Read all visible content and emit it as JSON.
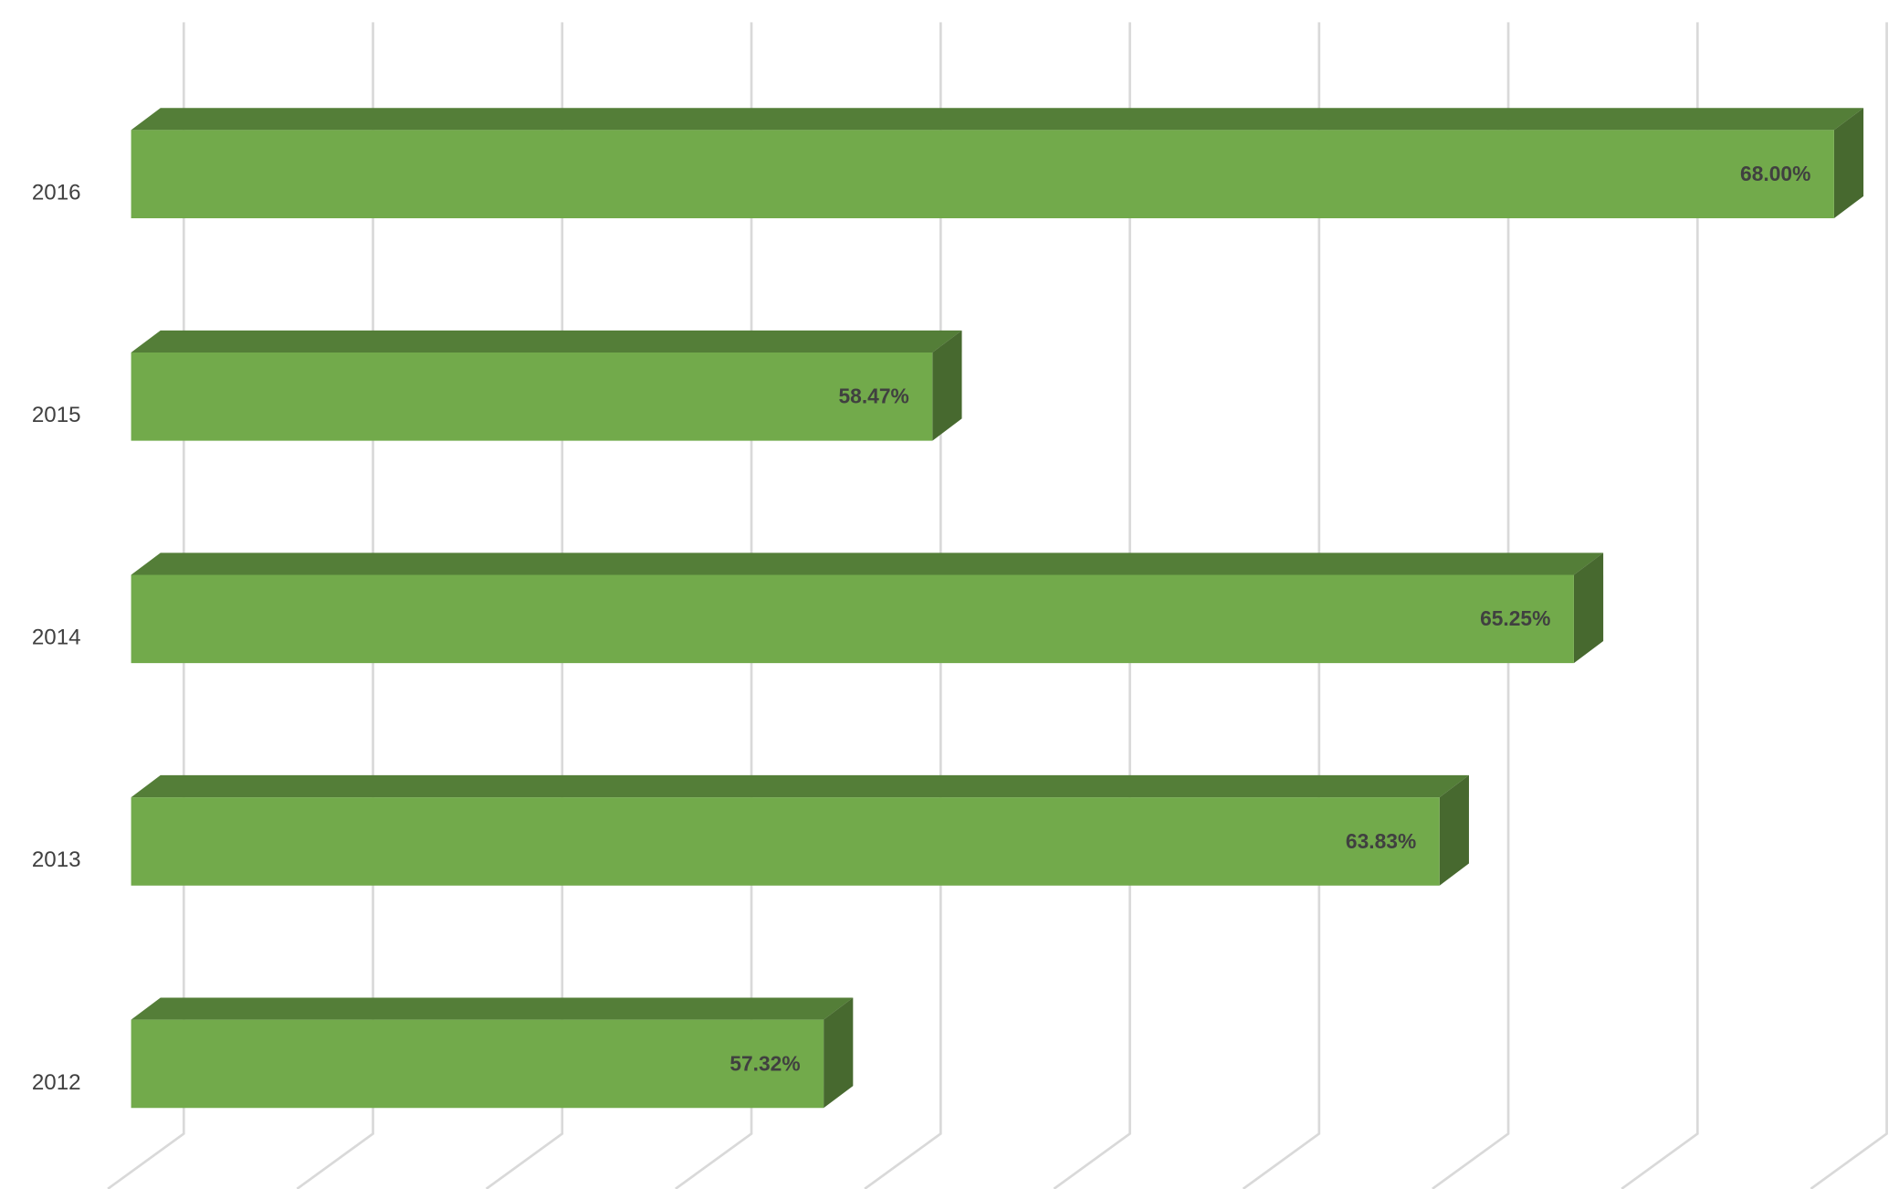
{
  "chart_data": {
    "type": "bar3d",
    "orientation": "horizontal",
    "categories": [
      "2016",
      "2015",
      "2014",
      "2013",
      "2012"
    ],
    "values": [
      68.0,
      58.47,
      65.25,
      63.83,
      57.32
    ],
    "value_labels": [
      "68.00%",
      "58.47%",
      "65.25%",
      "63.83%",
      "57.32%"
    ],
    "color": "#72aa4b",
    "xlim": [
      50,
      68
    ],
    "xticks": [
      50,
      52,
      54,
      56,
      58,
      60,
      62,
      64,
      66,
      68
    ],
    "grid": true
  }
}
